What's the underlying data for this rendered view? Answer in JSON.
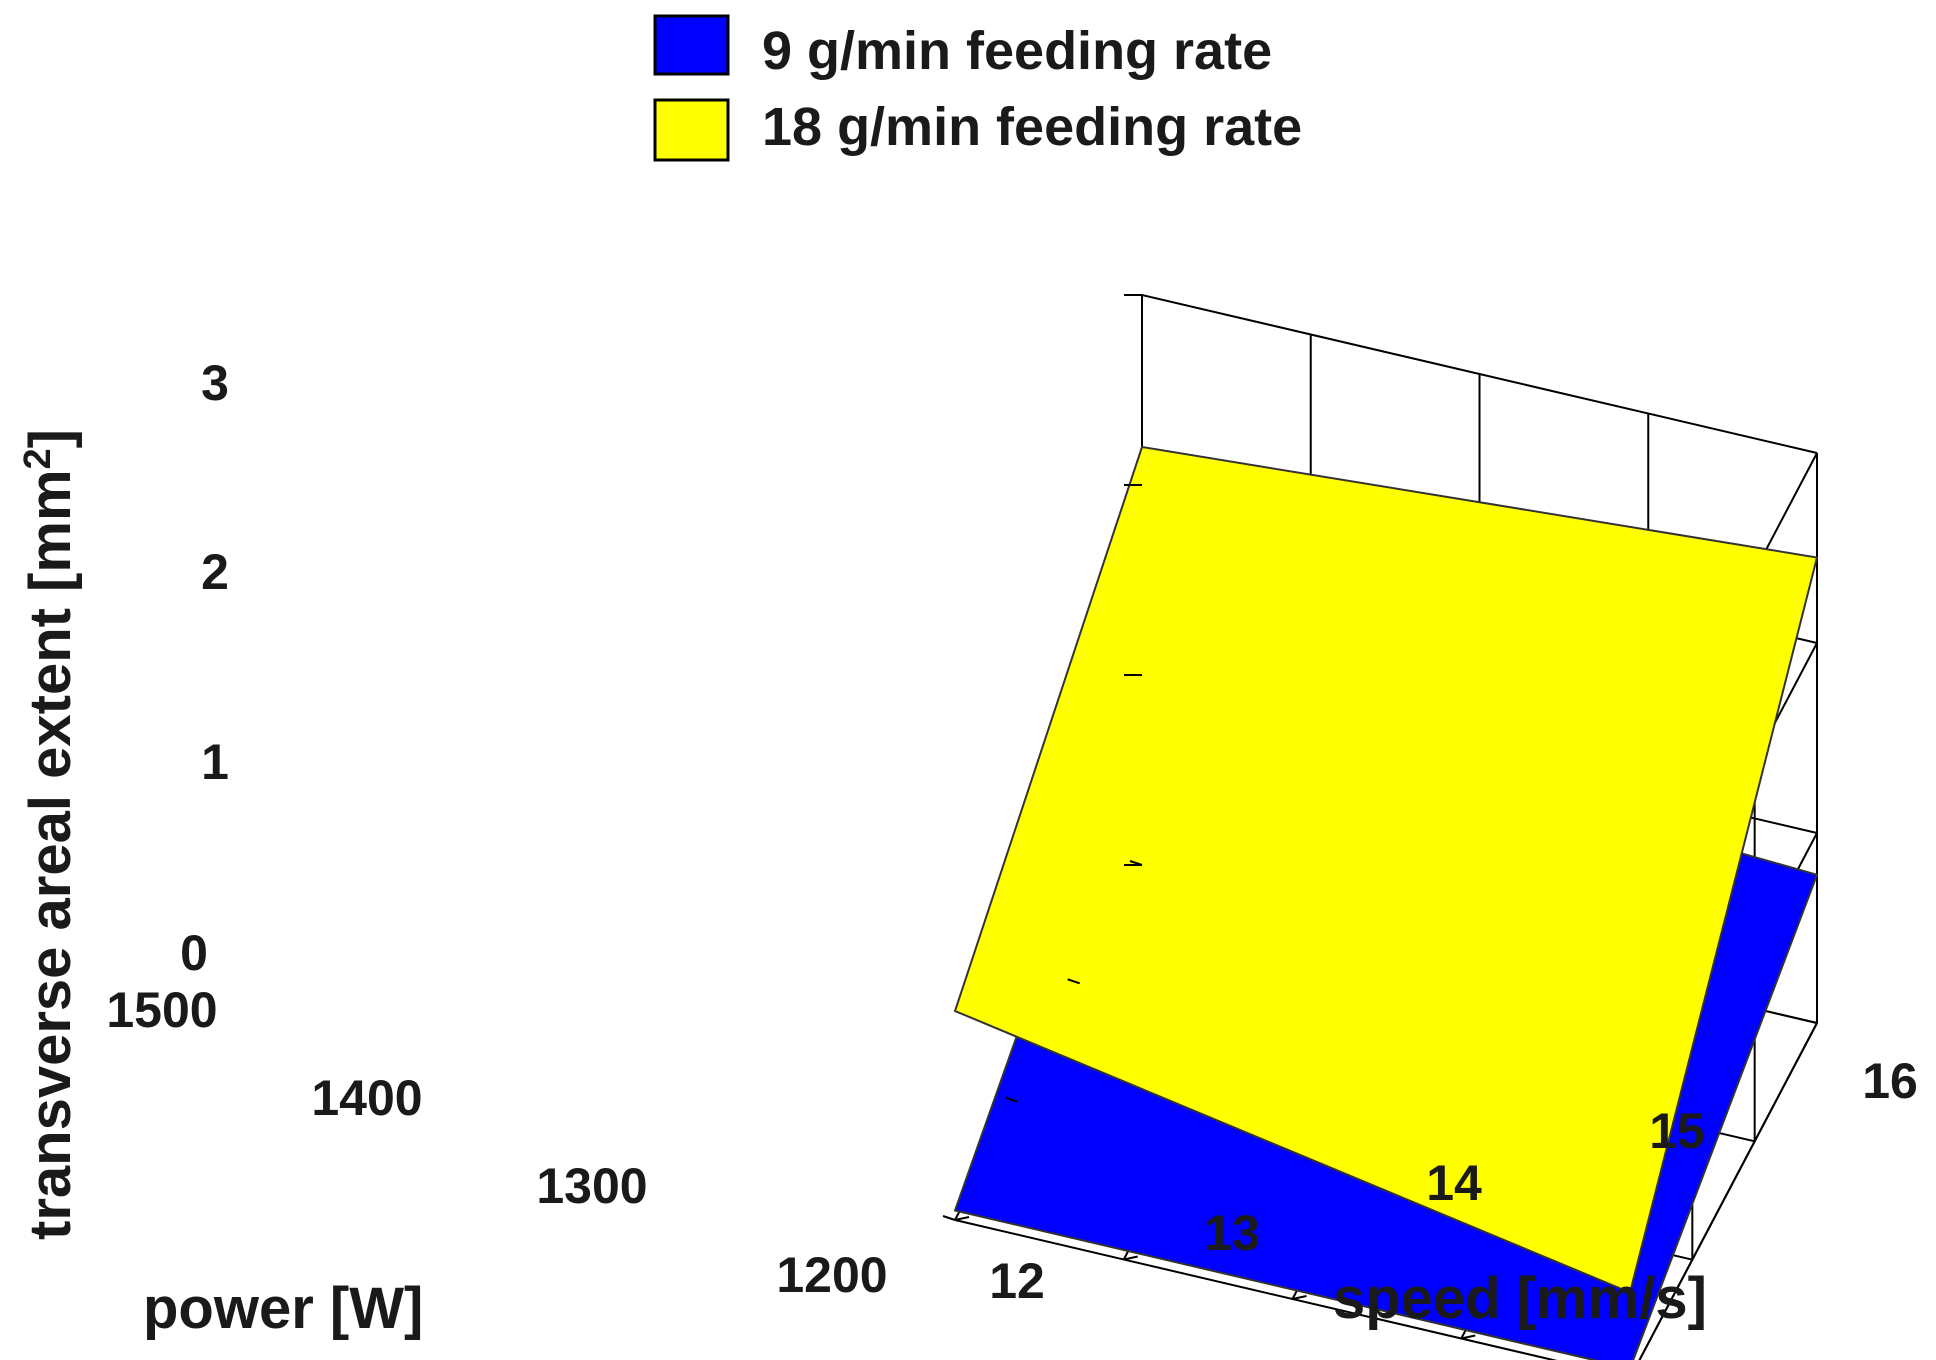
{
  "chart_data": {
    "type": "surface",
    "title": "",
    "xlabel": "speed [mm/s]",
    "ylabel": "power [W]",
    "zlabel": "transverse areal extent [mm",
    "zlabel_sup": "2",
    "zlabel_close": "]",
    "xlim": [
      12,
      16
    ],
    "ylim": [
      1200,
      1500
    ],
    "zlim": [
      0,
      3
    ],
    "x_ticks": [
      12,
      13,
      14,
      15,
      16
    ],
    "x_tick_labels": [
      "12",
      "13",
      "14",
      "15",
      "16"
    ],
    "y_ticks": [
      1200,
      1300,
      1400,
      1500
    ],
    "y_tick_labels": [
      "1200",
      "1300",
      "1400",
      "1500"
    ],
    "z_ticks": [
      0,
      1,
      2,
      3
    ],
    "z_tick_labels": [
      "0",
      "1",
      "2",
      "3"
    ],
    "grid": true,
    "legend_position": "top-center",
    "series": [
      {
        "name": "9 g/min feeding rate",
        "color": "#0000ff",
        "x": [
          12,
          16
        ],
        "y": [
          1200,
          1500
        ],
        "z": [
          [
            0.05,
            0.05
          ],
          [
            0.96,
            0.78
          ]
        ]
      },
      {
        "name": "18 g/min feeding rate",
        "color": "#ffff00",
        "x": [
          12,
          16
        ],
        "y": [
          1200,
          1500
        ],
        "z": [
          [
            1.1,
            0.45
          ],
          [
            2.2,
            2.45
          ]
        ]
      }
    ]
  }
}
